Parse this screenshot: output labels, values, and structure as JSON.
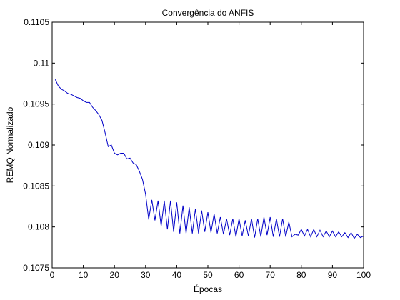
{
  "chart_data": {
    "type": "line",
    "title": "Convergência do ANFIS",
    "xlabel": "Épocas",
    "ylabel": "REMQ Normalizado",
    "xlim": [
      0,
      100
    ],
    "ylim": [
      0.1075,
      0.1105
    ],
    "xticks": [
      0,
      10,
      20,
      30,
      40,
      50,
      60,
      70,
      80,
      90,
      100
    ],
    "xtick_labels": [
      "0",
      "10",
      "20",
      "30",
      "40",
      "50",
      "60",
      "70",
      "80",
      "90",
      "100"
    ],
    "yticks": [
      0.1075,
      0.108,
      0.1085,
      0.109,
      0.1095,
      0.11,
      0.1105
    ],
    "ytick_labels": [
      "0.1075",
      "0.108",
      "0.1085",
      "0.109",
      "0.1095",
      "0.11",
      "0.1105"
    ],
    "grid": false,
    "colors": {
      "line": "#0000c8",
      "axes": "#000000",
      "background": "#ffffff"
    },
    "series": [
      {
        "x": [
          1,
          2,
          3,
          4,
          5,
          6,
          7,
          8,
          9,
          10,
          11,
          12,
          13,
          14,
          15,
          16,
          17,
          18,
          19,
          20,
          21,
          22,
          23,
          24,
          25,
          26,
          27,
          28,
          29,
          30,
          31,
          32,
          33,
          34,
          35,
          36,
          37,
          38,
          39,
          40,
          41,
          42,
          43,
          44,
          45,
          46,
          47,
          48,
          49,
          50,
          51,
          52,
          53,
          54,
          55,
          56,
          57,
          58,
          59,
          60,
          61,
          62,
          63,
          64,
          65,
          66,
          67,
          68,
          69,
          70,
          71,
          72,
          73,
          74,
          75,
          76,
          77,
          78,
          79,
          80,
          81,
          82,
          83,
          84,
          85,
          86,
          87,
          88,
          89,
          90,
          91,
          92,
          93,
          94,
          95,
          96,
          97,
          98,
          99,
          100
        ],
        "values": [
          0.1098,
          0.10972,
          0.10968,
          0.10966,
          0.10963,
          0.10962,
          0.1096,
          0.10958,
          0.10957,
          0.10954,
          0.10952,
          0.10952,
          0.10946,
          0.10942,
          0.10937,
          0.1093,
          0.10915,
          0.10898,
          0.109,
          0.1089,
          0.10888,
          0.1089,
          0.1089,
          0.10883,
          0.10884,
          0.10878,
          0.10876,
          0.10868,
          0.10858,
          0.1084,
          0.10809,
          0.10833,
          0.10808,
          0.10832,
          0.10801,
          0.10832,
          0.10797,
          0.10832,
          0.10794,
          0.1083,
          0.10792,
          0.10826,
          0.10792,
          0.10824,
          0.10792,
          0.10822,
          0.10792,
          0.1082,
          0.10794,
          0.10818,
          0.10793,
          0.10816,
          0.10792,
          0.10812,
          0.10791,
          0.1081,
          0.1079,
          0.1081,
          0.10788,
          0.1081,
          0.10789,
          0.10808,
          0.10789,
          0.1081,
          0.10787,
          0.1081,
          0.10788,
          0.10812,
          0.1079,
          0.10812,
          0.10788,
          0.1081,
          0.10788,
          0.1081,
          0.10788,
          0.10806,
          0.10788,
          0.10791,
          0.1079,
          0.10797,
          0.10789,
          0.10797,
          0.10788,
          0.10797,
          0.10788,
          0.10796,
          0.10788,
          0.10795,
          0.10788,
          0.10795,
          0.10788,
          0.10794,
          0.10788,
          0.10793,
          0.10787,
          0.10793,
          0.10786,
          0.10791,
          0.10787,
          0.10789
        ]
      }
    ]
  }
}
